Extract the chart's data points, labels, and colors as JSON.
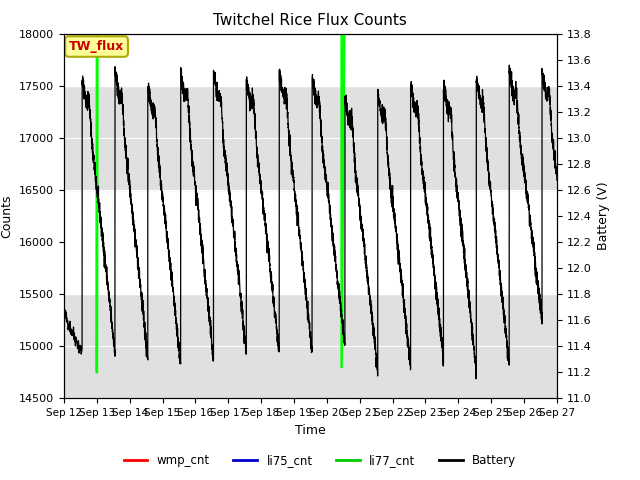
{
  "title": "Twitchel Rice Flux Counts",
  "xlabel": "Time",
  "ylabel_left": "Counts",
  "ylabel_right": "Battery (V)",
  "ylim_left": [
    14500,
    18000
  ],
  "ylim_right": [
    11.0,
    13.8
  ],
  "xlim": [
    0,
    15
  ],
  "xtick_labels": [
    "Sep 12",
    "Sep 13",
    "Sep 14",
    "Sep 15",
    "Sep 16",
    "Sep 17",
    "Sep 18",
    "Sep 19",
    "Sep 20",
    "Sep 21",
    "Sep 22",
    "Sep 23",
    "Sep 24",
    "Sep 25",
    "Sep 26",
    "Sep 27"
  ],
  "annotation_text": "TW_flux",
  "annotation_color": "#cc0000",
  "annotation_bg": "#ffff99",
  "annotation_border": "#aaaa00",
  "li77_color": "#00ff00",
  "li75_color": "#0000cc",
  "wmp_color": "#ff0000",
  "battery_color": "#000000",
  "bg_band_color": "#e0e0e0",
  "legend_items": [
    "wmp_cnt",
    "li75_cnt",
    "li77_cnt",
    "Battery"
  ],
  "legend_colors": [
    "#ff0000",
    "#0000cc",
    "#00cc00",
    "#000000"
  ],
  "ytick_left": [
    14500,
    15000,
    15500,
    16000,
    16500,
    17000,
    17500,
    18000
  ],
  "ytick_right": [
    11.0,
    11.2,
    11.4,
    11.6,
    11.8,
    12.0,
    12.2,
    12.4,
    12.6,
    12.8,
    13.0,
    13.2,
    13.4,
    13.6,
    13.8
  ],
  "band_boundaries": [
    14500,
    15500,
    16500,
    17500,
    18500
  ]
}
